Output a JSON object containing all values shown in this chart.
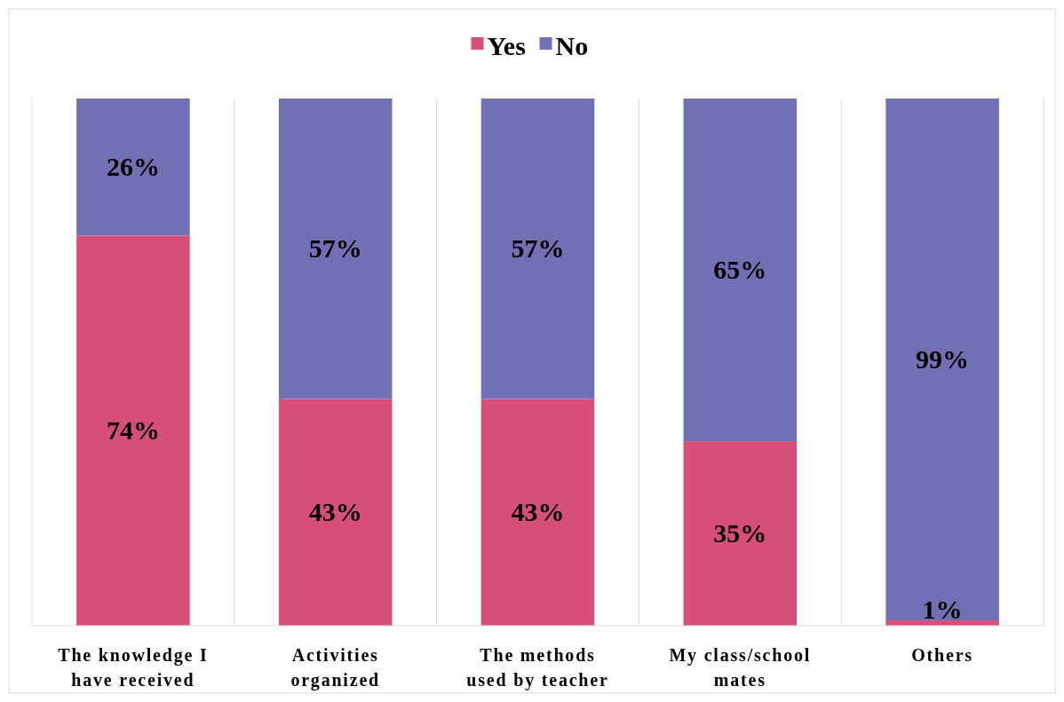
{
  "chart_data": {
    "type": "bar",
    "stacked": true,
    "categories": [
      "The knowledge I have received",
      "Activities organized",
      "The methods used by teacher",
      "My class/school mates",
      "Others"
    ],
    "series": [
      {
        "name": "Yes",
        "color": "#d64f77",
        "values": [
          74,
          43,
          43,
          35,
          1
        ],
        "value_labels": [
          "74%",
          "43%",
          "43%",
          "35%",
          "1%"
        ]
      },
      {
        "name": "No",
        "color": "#7270b5",
        "values": [
          26,
          57,
          57,
          65,
          99
        ],
        "value_labels": [
          "26%",
          "57%",
          "57%",
          "65%",
          "99%"
        ]
      }
    ],
    "ylim": [
      0,
      100
    ],
    "tick_labels": "x",
    "legend": "top",
    "grid": "x"
  }
}
